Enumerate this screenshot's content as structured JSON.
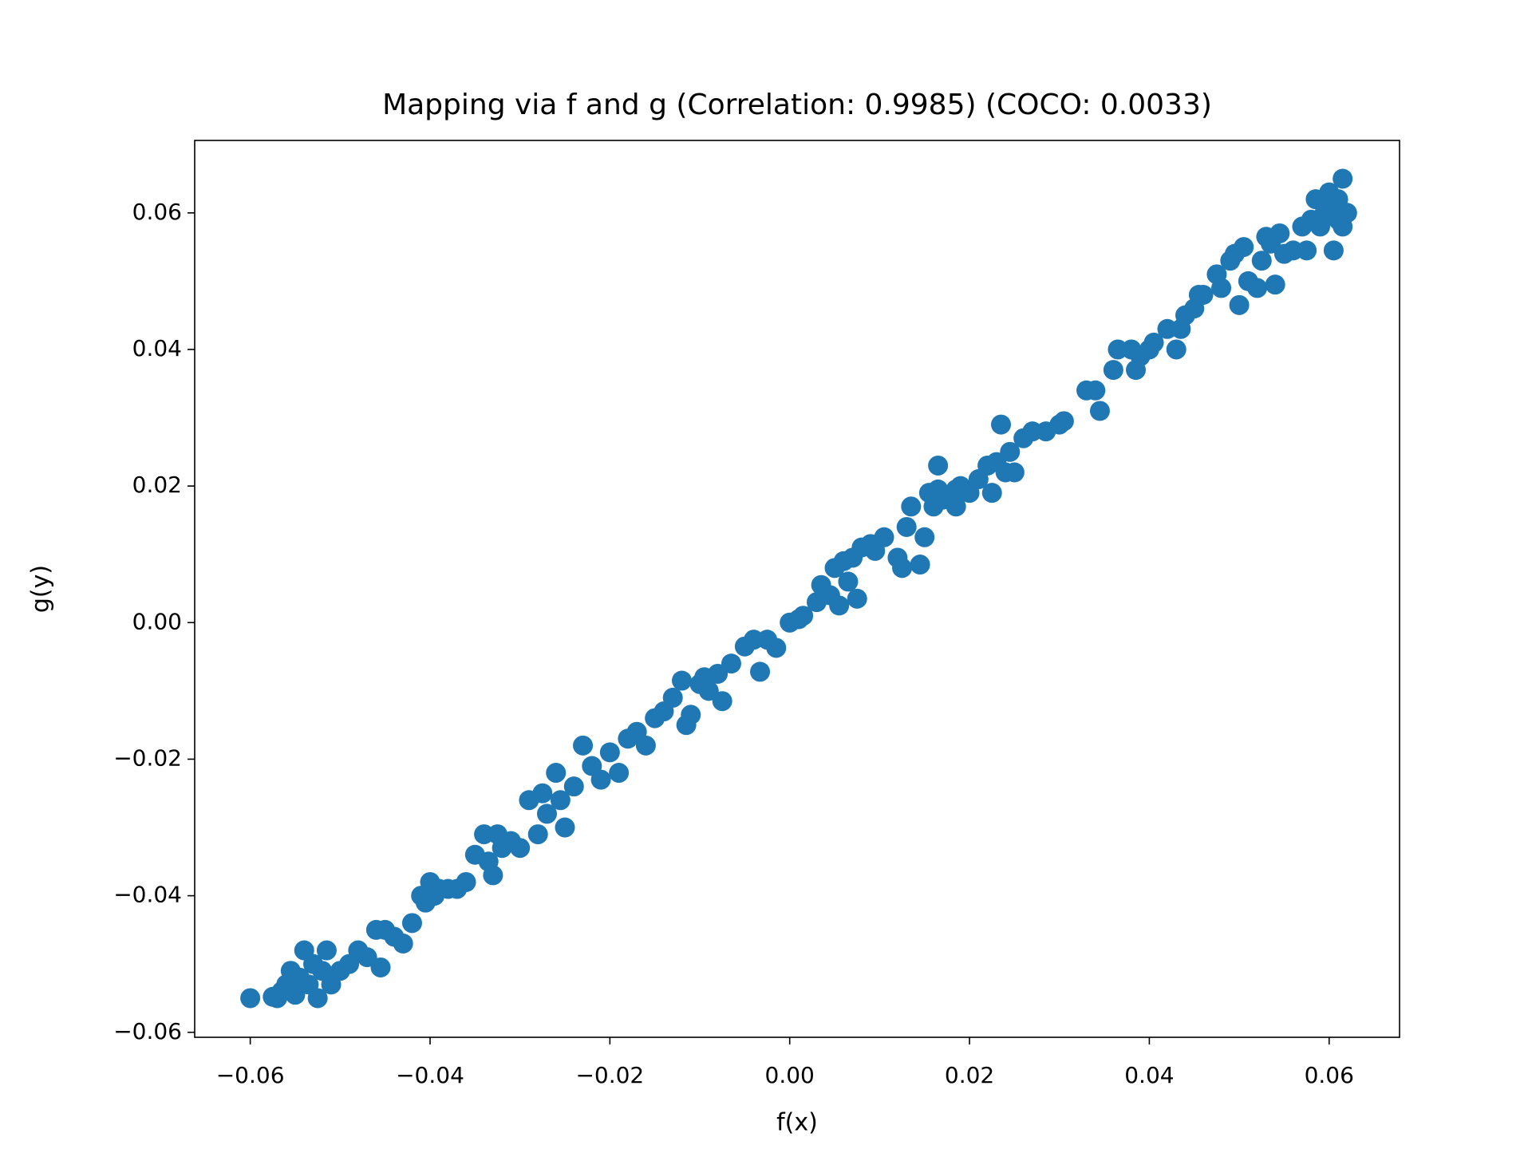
{
  "chart_data": {
    "type": "scatter",
    "title": "Mapping via f and g (Correlation: 0.9985) (COCO: 0.0033)",
    "xlabel": "f(x)",
    "ylabel": "g(y)",
    "color": "#1f77b4",
    "xlim": [
      -0.06618,
      0.06783
    ],
    "ylim": [
      -0.06073,
      0.07061
    ],
    "xticks": [
      {
        "value": -0.06,
        "label": "−0.06"
      },
      {
        "value": -0.04,
        "label": "−0.04"
      },
      {
        "value": -0.02,
        "label": "−0.02"
      },
      {
        "value": 0,
        "label": "0.00"
      },
      0.02,
      0.04,
      0.06
    ],
    "yticks": [
      {
        "value": -0.06,
        "label": "−0.06"
      },
      {
        "value": -0.04,
        "label": "−0.04"
      },
      {
        "value": -0.02,
        "label": "−0.02"
      },
      {
        "value": 0,
        "label": "0.00"
      },
      0.02,
      0.04,
      0.06
    ],
    "x": [
      -0.06,
      -0.0575,
      -0.057,
      -0.0565,
      -0.056,
      -0.0555,
      -0.055,
      -0.0545,
      -0.054,
      -0.0535,
      -0.053,
      -0.0525,
      -0.052,
      -0.0515,
      -0.051,
      -0.05,
      -0.049,
      -0.048,
      -0.047,
      -0.046,
      -0.0455,
      -0.045,
      -0.044,
      -0.043,
      -0.042,
      -0.041,
      -0.0405,
      -0.04,
      -0.0395,
      -0.039,
      -0.038,
      -0.037,
      -0.036,
      -0.035,
      -0.034,
      -0.0335,
      -0.033,
      -0.0325,
      -0.032,
      -0.031,
      -0.03,
      -0.029,
      -0.028,
      -0.0275,
      -0.027,
      -0.026,
      -0.0255,
      -0.025,
      -0.024,
      -0.023,
      -0.022,
      -0.021,
      -0.02,
      -0.019,
      -0.018,
      -0.017,
      -0.016,
      -0.015,
      -0.014,
      -0.013,
      -0.012,
      -0.0115,
      -0.011,
      -0.01,
      -0.0095,
      -0.009,
      -0.008,
      -0.0075,
      -0.0065,
      -0.005,
      -0.004,
      -0.0033,
      -0.0025,
      -0.0015,
      0.0,
      0.001,
      0.0015,
      0.003,
      0.0035,
      0.0045,
      0.005,
      0.0055,
      0.006,
      0.0065,
      0.007,
      0.0075,
      0.008,
      0.009,
      0.0095,
      0.0105,
      0.012,
      0.0125,
      0.013,
      0.0135,
      0.0145,
      0.015,
      0.0155,
      0.016,
      0.017,
      0.0165,
      0.0185,
      0.019,
      0.02,
      0.021,
      0.0185,
      0.0165,
      0.022,
      0.0225,
      0.023,
      0.024,
      0.0245,
      0.025,
      0.0235,
      0.026,
      0.027,
      0.0285,
      0.03,
      0.0305,
      0.033,
      0.034,
      0.0345,
      0.036,
      0.0365,
      0.038,
      0.0385,
      0.039,
      0.04,
      0.0405,
      0.042,
      0.043,
      0.0435,
      0.044,
      0.045,
      0.0455,
      0.046,
      0.0475,
      0.048,
      0.049,
      0.05,
      0.0495,
      0.0505,
      0.051,
      0.052,
      0.0525,
      0.053,
      0.0535,
      0.054,
      0.0545,
      0.055,
      0.056,
      0.0575,
      0.057,
      0.058,
      0.0585,
      0.059,
      0.0595,
      0.06,
      0.0605,
      0.061,
      0.0615,
      0.0615,
      0.061,
      0.0605,
      0.062
    ],
    "y": [
      -0.055,
      -0.0548,
      -0.055,
      -0.054,
      -0.053,
      -0.051,
      -0.0545,
      -0.052,
      -0.048,
      -0.053,
      -0.05,
      -0.055,
      -0.051,
      -0.048,
      -0.053,
      -0.051,
      -0.05,
      -0.048,
      -0.049,
      -0.045,
      -0.0505,
      -0.045,
      -0.046,
      -0.047,
      -0.044,
      -0.04,
      -0.041,
      -0.038,
      -0.04,
      -0.039,
      -0.039,
      -0.039,
      -0.038,
      -0.034,
      -0.031,
      -0.035,
      -0.037,
      -0.031,
      -0.033,
      -0.032,
      -0.033,
      -0.026,
      -0.031,
      -0.025,
      -0.028,
      -0.022,
      -0.026,
      -0.03,
      -0.024,
      -0.018,
      -0.021,
      -0.023,
      -0.019,
      -0.022,
      -0.017,
      -0.016,
      -0.018,
      -0.014,
      -0.013,
      -0.011,
      -0.0085,
      -0.015,
      -0.0135,
      -0.009,
      -0.008,
      -0.01,
      -0.0075,
      -0.0115,
      -0.006,
      -0.0035,
      -0.0025,
      -0.0072,
      -0.0025,
      -0.0037,
      0.0,
      0.0005,
      0.001,
      0.003,
      0.0055,
      0.004,
      0.008,
      0.0025,
      0.009,
      0.006,
      0.0095,
      0.0035,
      0.011,
      0.0115,
      0.0105,
      0.0125,
      0.0095,
      0.008,
      0.014,
      0.017,
      0.0085,
      0.0125,
      0.019,
      0.017,
      0.018,
      0.0195,
      0.017,
      0.02,
      0.019,
      0.021,
      0.0195,
      0.023,
      0.023,
      0.019,
      0.0235,
      0.022,
      0.025,
      0.022,
      0.029,
      0.027,
      0.028,
      0.028,
      0.029,
      0.0295,
      0.034,
      0.034,
      0.031,
      0.037,
      0.04,
      0.04,
      0.037,
      0.039,
      0.04,
      0.041,
      0.043,
      0.04,
      0.043,
      0.045,
      0.046,
      0.048,
      0.048,
      0.051,
      0.049,
      0.053,
      0.0465,
      0.054,
      0.055,
      0.05,
      0.049,
      0.053,
      0.0565,
      0.0555,
      0.0495,
      0.057,
      0.054,
      0.0545,
      0.0545,
      0.058,
      0.059,
      0.062,
      0.058,
      0.06,
      0.063,
      0.0545,
      0.059,
      0.065,
      0.058,
      0.062,
      0.061,
      0.06
    ]
  }
}
